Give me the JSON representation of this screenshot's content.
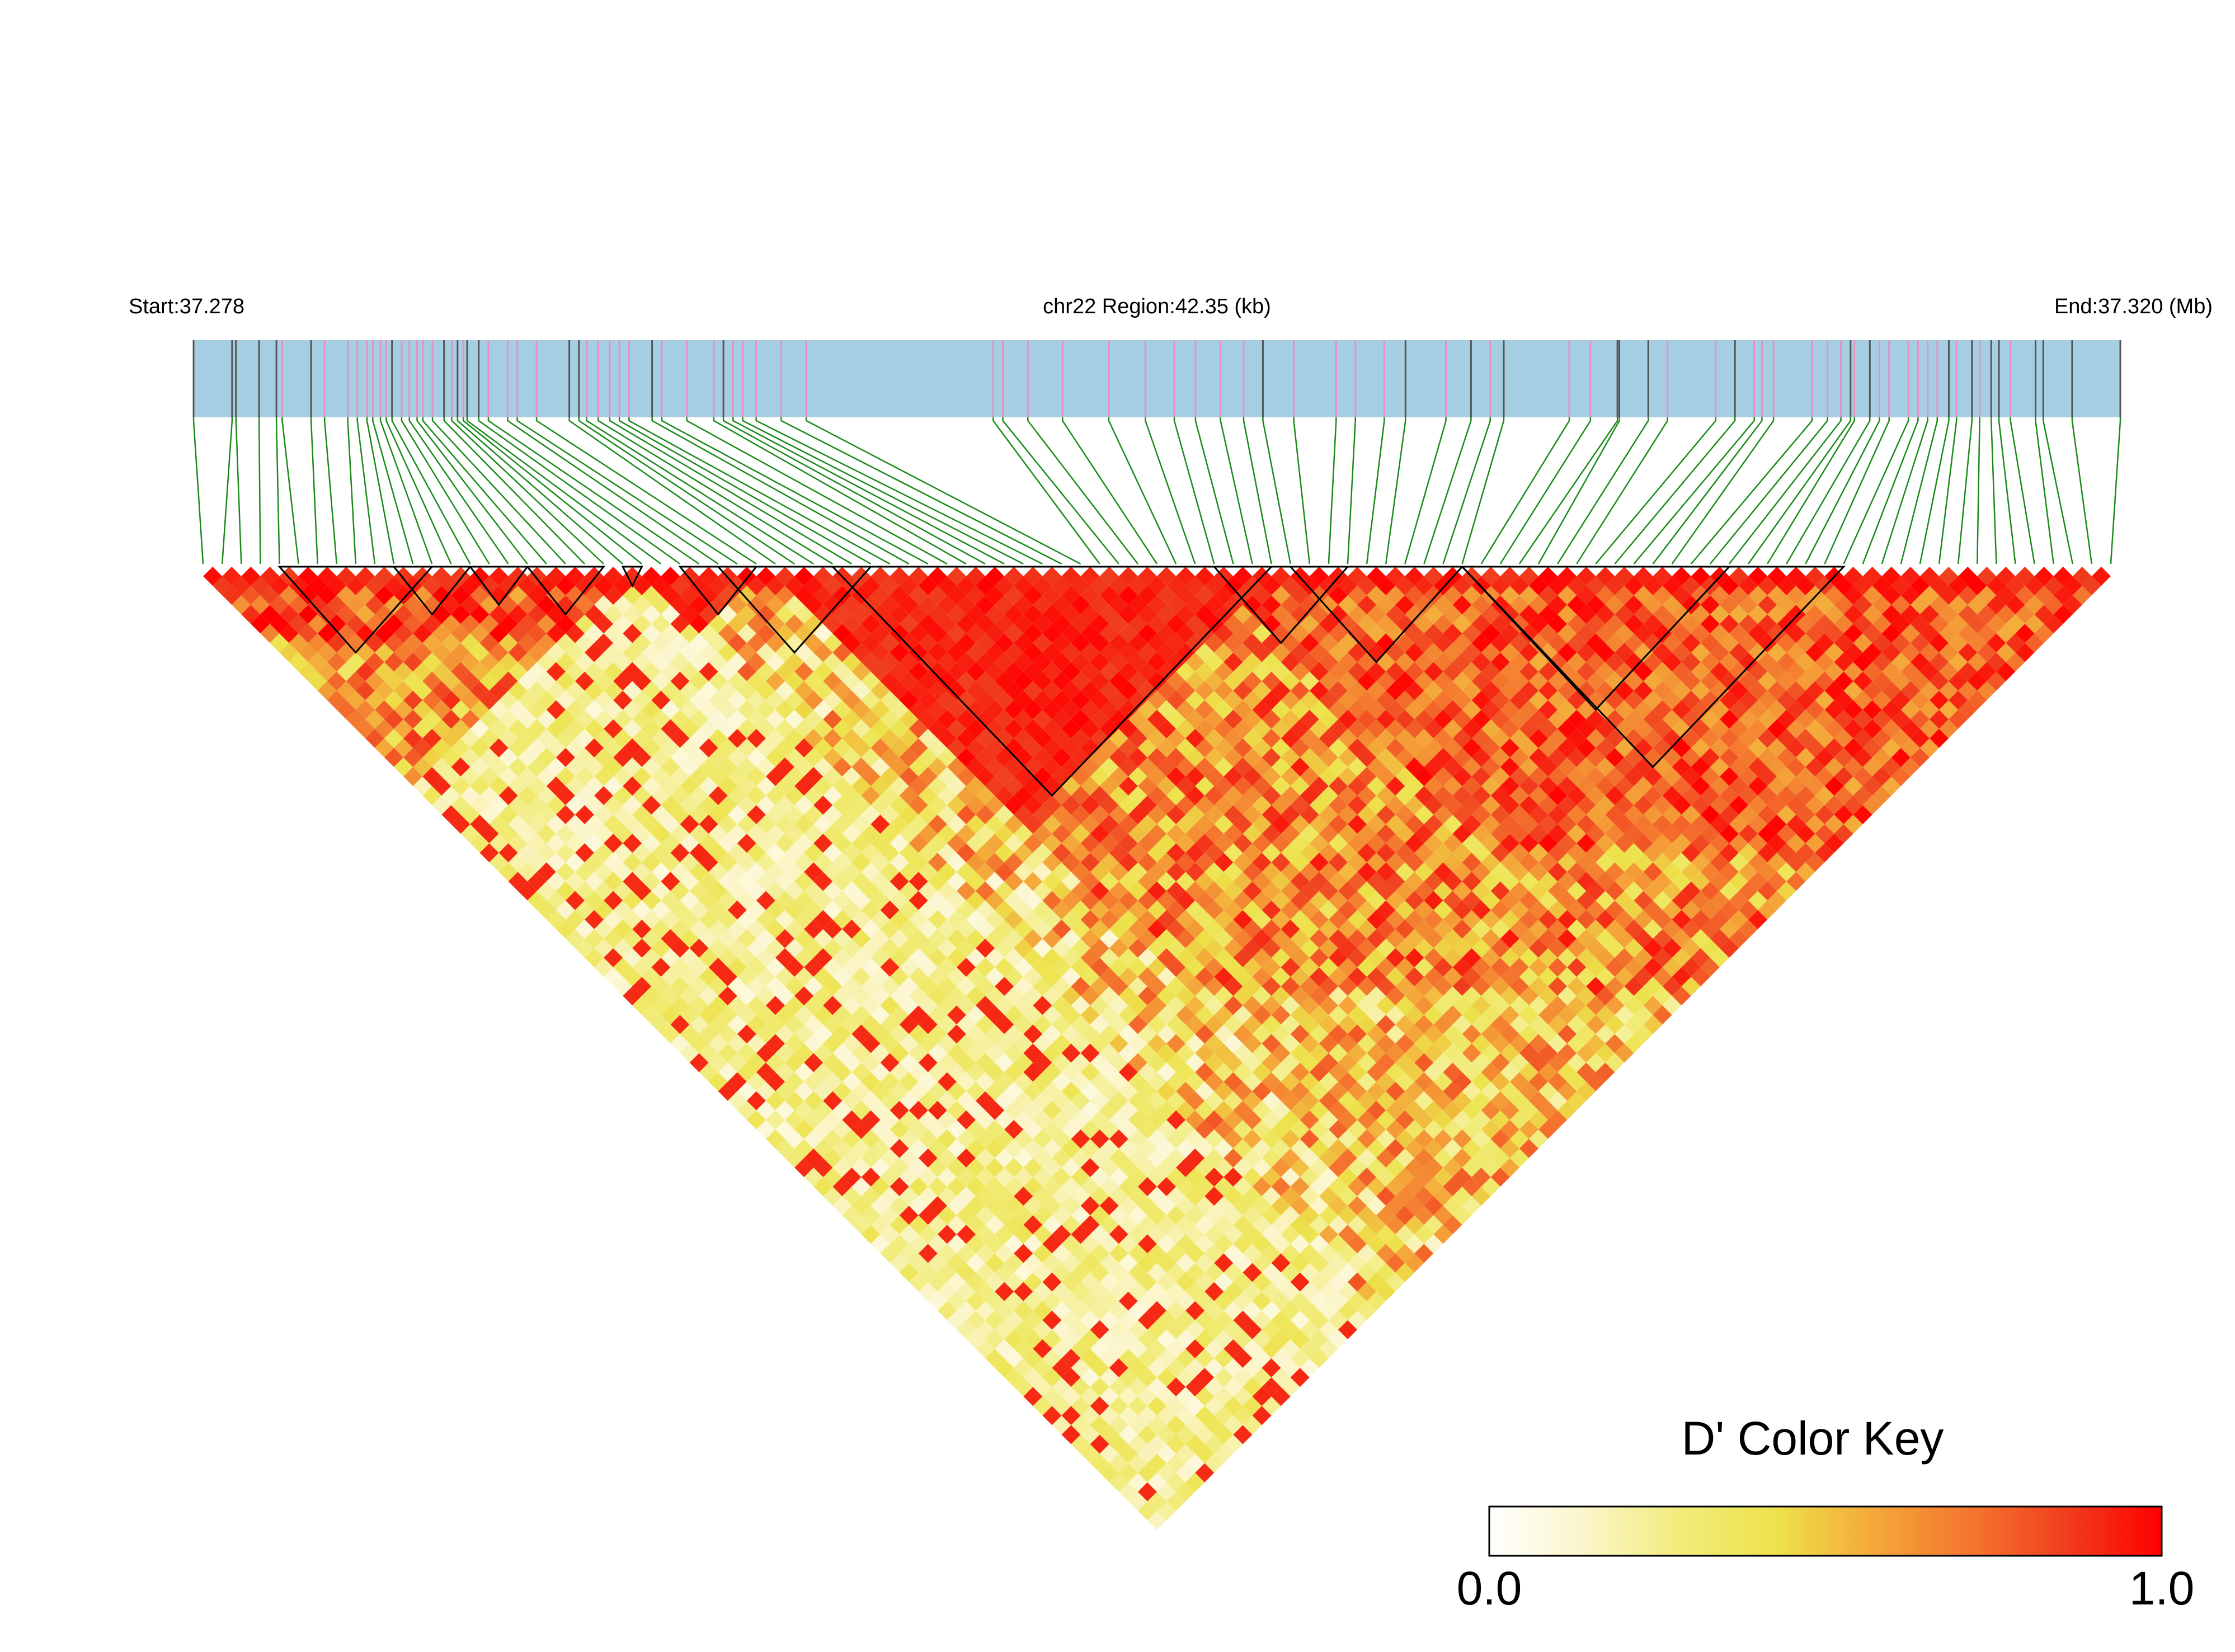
{
  "header": {
    "start_label": "Start:37.278",
    "region_label": "chr22 Region:42.35 (kb)",
    "end_label": "End:37.320 (Mb)"
  },
  "legend": {
    "title": "D' Color Key",
    "min_label": "0.0",
    "max_label": "1.0",
    "gradient_colors": [
      "#ffffff",
      "#fbf5c8",
      "#f1ec7a",
      "#ede24a",
      "#f4a83a",
      "#f4762e",
      "#f03e1e",
      "#ff0000"
    ]
  },
  "colors": {
    "chromosome_bar": "#a6cee3",
    "snp_tick_gray": "#555555",
    "snp_tick_pink": "#e88fc4",
    "connector_lines": "#1a8a1a",
    "block_outline": "#000000"
  },
  "chart_data": {
    "type": "heatmap",
    "description_type": "LD heatmap (pairwise D')",
    "chromosome": "chr22",
    "region_start_mb": 37.278,
    "region_end_mb": 37.32,
    "region_kb": 42.35,
    "n_snps": 101,
    "value_scale": [
      0.0,
      1.0
    ],
    "snp_positions_frac": [
      0,
      0.02,
      0.022,
      0.034,
      0.043,
      0.046,
      0.061,
      0.068,
      0.08,
      0.085,
      0.09,
      0.093,
      0.097,
      0.1,
      0.103,
      0.108,
      0.112,
      0.116,
      0.119,
      0.124,
      0.13,
      0.134,
      0.137,
      0.14,
      0.142,
      0.148,
      0.153,
      0.163,
      0.168,
      0.178,
      0.195,
      0.2,
      0.204,
      0.21,
      0.216,
      0.221,
      0.226,
      0.238,
      0.243,
      0.256,
      0.27,
      0.275,
      0.28,
      0.285,
      0.292,
      0.305,
      0.318,
      0.415,
      0.42,
      0.433,
      0.451,
      0.475,
      0.494,
      0.509,
      0.52,
      0.533,
      0.545,
      0.555,
      0.571,
      0.593,
      0.603,
      0.618,
      0.629,
      0.65,
      0.663,
      0.673,
      0.68,
      0.714,
      0.725,
      0.739,
      0.74,
      0.755,
      0.765,
      0.79,
      0.8,
      0.81,
      0.814,
      0.82,
      0.84,
      0.848,
      0.855,
      0.86,
      0.862,
      0.87,
      0.875,
      0.88,
      0.89,
      0.895,
      0.9,
      0.905,
      0.911,
      0.915,
      0.923,
      0.927,
      0.933,
      0.937,
      0.943,
      0.956,
      0.96,
      0.975,
      1.0
    ],
    "snp_tick_colors": [
      "g",
      "g",
      "g",
      "g",
      "g",
      "p",
      "g",
      "p",
      "p",
      "p",
      "p",
      "p",
      "p",
      "p",
      "g",
      "p",
      "p",
      "p",
      "p",
      "p",
      "g",
      "p",
      "g",
      "p",
      "g",
      "g",
      "p",
      "p",
      "p",
      "p",
      "g",
      "g",
      "p",
      "p",
      "p",
      "p",
      "p",
      "g",
      "p",
      "p",
      "p",
      "g",
      "p",
      "p",
      "p",
      "p",
      "p",
      "p",
      "p",
      "p",
      "p",
      "p",
      "p",
      "p",
      "p",
      "p",
      "p",
      "g",
      "p",
      "p",
      "p",
      "p",
      "g",
      "p",
      "g",
      "p",
      "g",
      "p",
      "p",
      "g",
      "g",
      "g",
      "p",
      "p",
      "g",
      "p",
      "p",
      "p",
      "p",
      "p",
      "p",
      "g",
      "p",
      "g",
      "p",
      "p",
      "p",
      "p",
      "p",
      "p",
      "g",
      "p",
      "g",
      "p",
      "g",
      "g",
      "p",
      "g",
      "g",
      "g",
      "g"
    ],
    "blocks": [
      [
        4,
        12
      ],
      [
        10,
        14
      ],
      [
        14,
        17
      ],
      [
        17,
        21
      ],
      [
        22,
        23
      ],
      [
        25,
        29
      ],
      [
        27,
        35
      ],
      [
        33,
        56
      ],
      [
        53,
        60
      ],
      [
        57,
        66
      ],
      [
        66,
        80
      ],
      [
        66,
        86
      ]
    ],
    "block_description": "pairs of SNP index [first, last] outlined as haplotype blocks",
    "notes": "Matrix values below summarise the depicted D' pattern: high (red) near the diagonal and within the central and right groups, low (white/yellow) for long-range pairs between the left group and the rest."
  }
}
